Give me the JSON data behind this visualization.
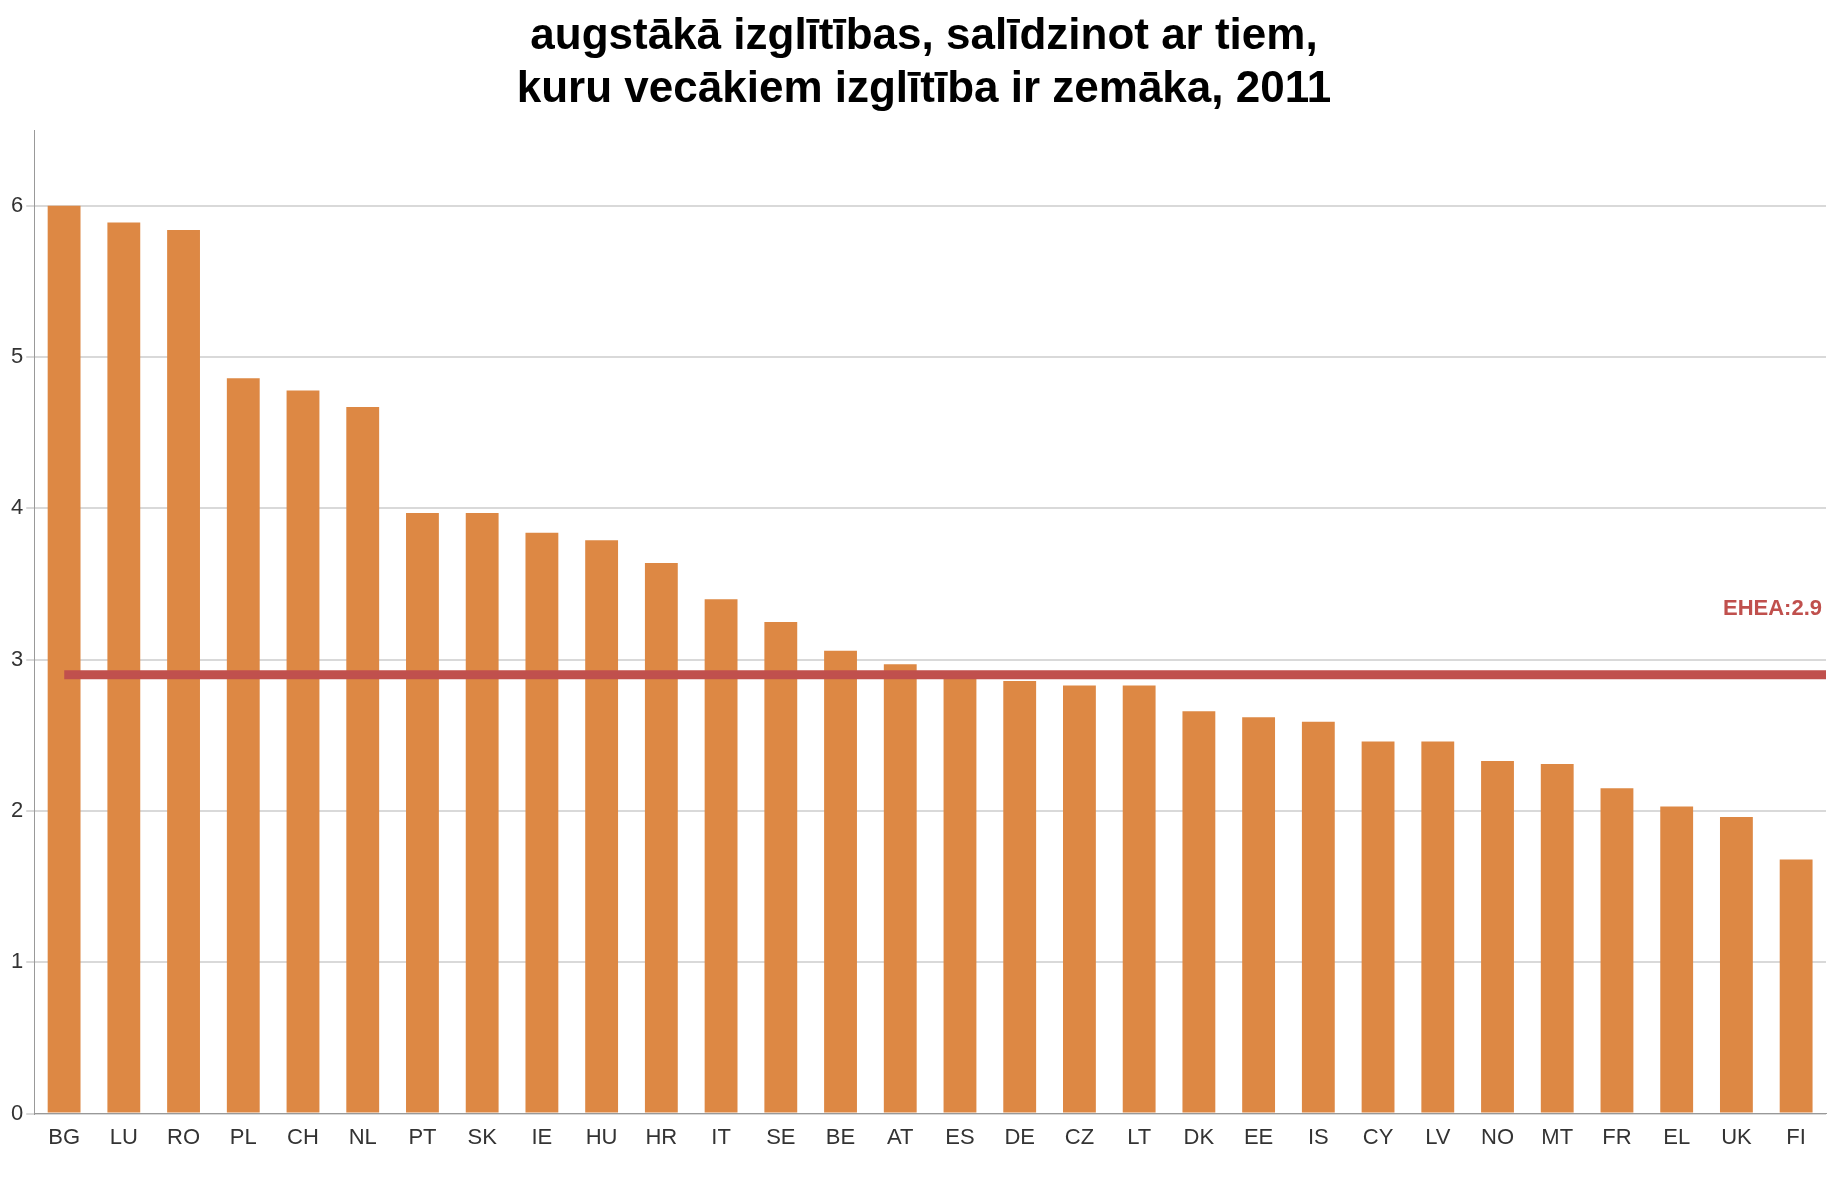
{
  "chart_data": {
    "type": "bar",
    "title": "augstākā izglītības, salīdzinot ar tiem,\nkuru vecākiem izglītība ir zemāka, 2011",
    "categories": [
      "BG",
      "LU",
      "RO",
      "PL",
      "CH",
      "NL",
      "PT",
      "SK",
      "IE",
      "HU",
      "HR",
      "IT",
      "SE",
      "BE",
      "AT",
      "ES",
      "DE",
      "CZ",
      "LT",
      "DK",
      "EE",
      "IS",
      "CY",
      "LV",
      "NO",
      "MT",
      "FR",
      "EL",
      "UK",
      "FI"
    ],
    "values": [
      6.0,
      5.89,
      5.84,
      4.86,
      4.78,
      4.67,
      3.97,
      3.97,
      3.84,
      3.79,
      3.64,
      3.4,
      3.25,
      3.06,
      2.97,
      2.9,
      2.86,
      2.83,
      2.83,
      2.66,
      2.62,
      2.59,
      2.46,
      2.46,
      2.33,
      2.31,
      2.15,
      2.03,
      1.96,
      1.68
    ],
    "color": "#dd8844",
    "ylim": [
      0,
      6.5
    ],
    "yticks": [
      0,
      1,
      2,
      3,
      4,
      5,
      6
    ],
    "grid": "y",
    "ref_lines": [
      {
        "axis": "y",
        "value": 2.9,
        "label": "EHEA:2.9",
        "color": "#c0504d"
      }
    ]
  }
}
